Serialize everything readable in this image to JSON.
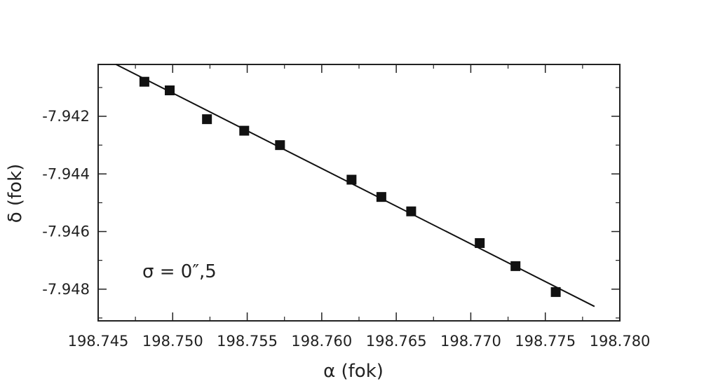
{
  "chart_data": {
    "type": "scatter",
    "xlabel": "α (fok)",
    "ylabel": "δ (fok)",
    "xlim": [
      198.745,
      198.78
    ],
    "ylim": [
      -7.9491,
      -7.9402
    ],
    "x_ticks": [
      198.745,
      198.75,
      198.755,
      198.76,
      198.765,
      198.77,
      198.775,
      198.78
    ],
    "x_tick_labels": [
      "198.745",
      "198.750",
      "198.755",
      "198.760",
      "198.765",
      "198.770",
      "198.775",
      "198.780"
    ],
    "y_ticks": [
      -7.942,
      -7.944,
      -7.946,
      -7.948
    ],
    "y_tick_labels": [
      "-7.942",
      "-7.944",
      "-7.946",
      "-7.948"
    ],
    "x_minor_step": 0.0025,
    "y_minor_step": 0.001,
    "series": [
      {
        "marker": "square",
        "x": [
          198.7481,
          198.7498,
          198.7523,
          198.7548,
          198.7572,
          198.762,
          198.764,
          198.766,
          198.7706,
          198.773,
          198.7757
        ],
        "y": [
          -7.9408,
          -7.9411,
          -7.9421,
          -7.9425,
          -7.943,
          -7.9442,
          -7.9448,
          -7.9453,
          -7.9464,
          -7.9472,
          -7.9481
        ]
      }
    ],
    "fit_line": {
      "x": [
        198.7462,
        198.7783
      ],
      "y": [
        -7.9402,
        -7.9486
      ]
    },
    "annotation": "σ = 0″,5",
    "grid": false,
    "colors": {
      "marker": "#111111",
      "line": "#111111",
      "axis": "#222222"
    }
  }
}
